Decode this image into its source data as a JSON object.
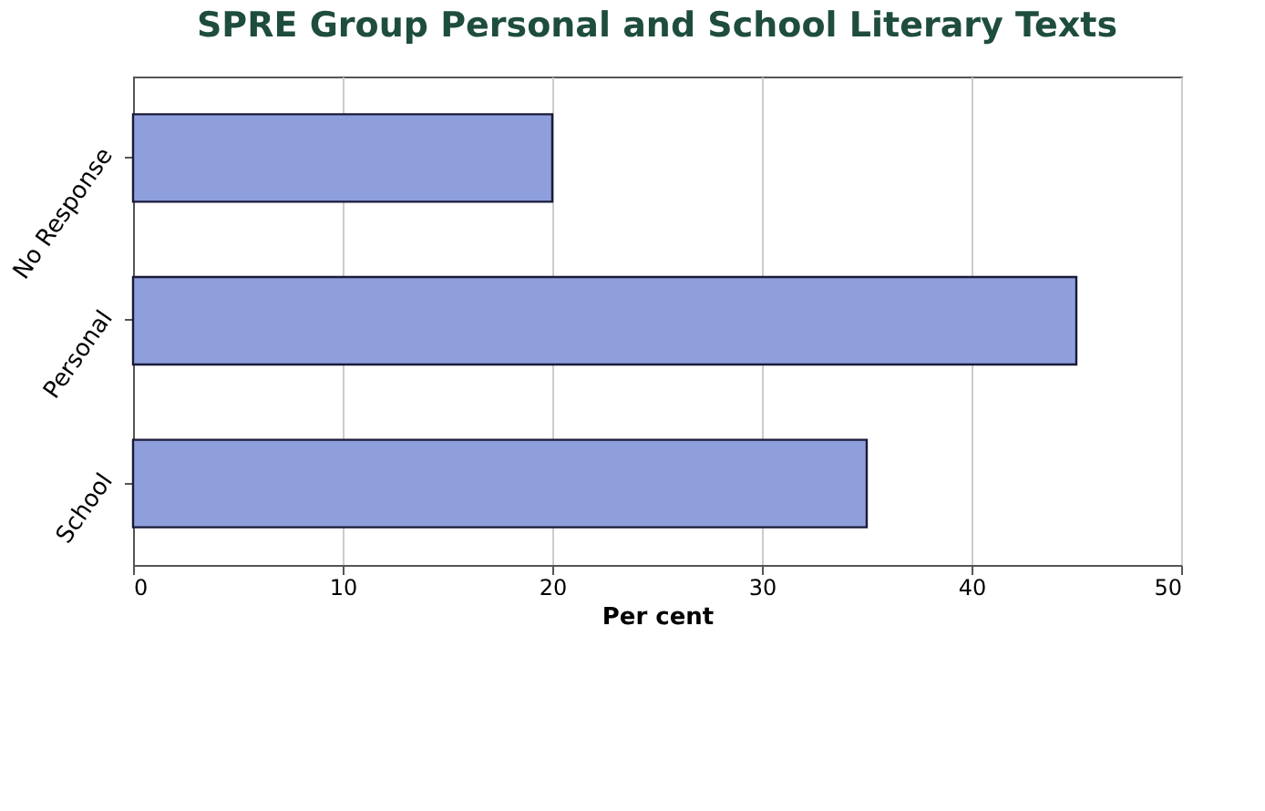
{
  "chart_data": {
    "type": "bar",
    "orientation": "horizontal",
    "title": "SPRE Group Personal and School Literary Texts",
    "xlabel": "Per cent",
    "categories": [
      "No Response",
      "Personal",
      "School"
    ],
    "values": [
      20,
      45,
      35
    ],
    "color": "#8e9fdb",
    "xlim": [
      0,
      50
    ],
    "xticks": [
      0,
      10,
      20,
      30,
      40,
      50
    ],
    "grid": "x"
  }
}
